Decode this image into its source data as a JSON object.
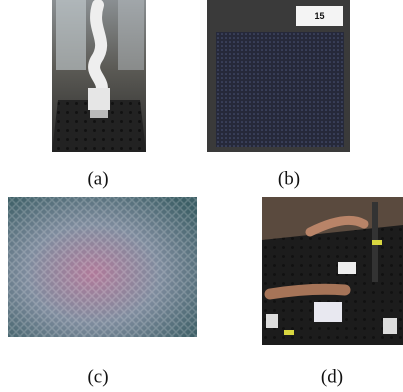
{
  "panels": [
    {
      "caption": "(a)"
    },
    {
      "caption": "(b)",
      "sample_label": "15"
    },
    {
      "caption": "(c)"
    },
    {
      "caption": "(d)"
    }
  ]
}
